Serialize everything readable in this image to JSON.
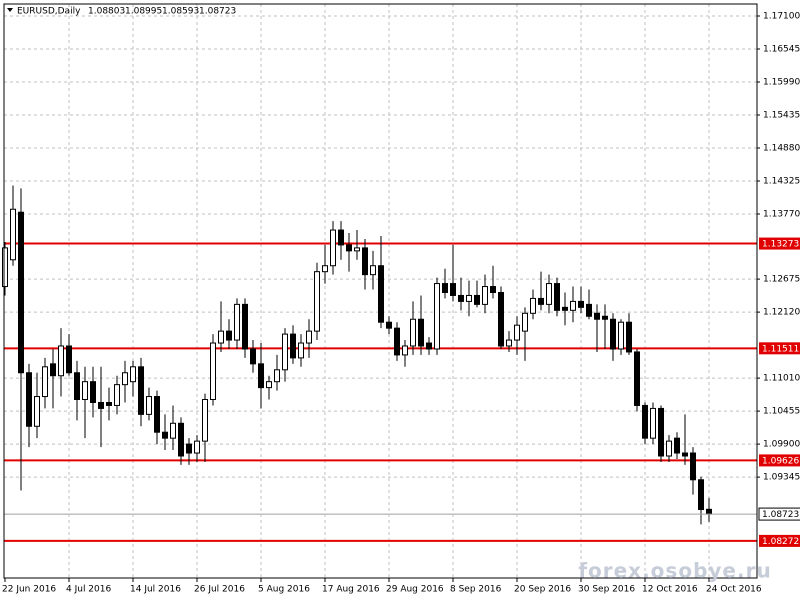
{
  "chart_data": {
    "type": "candlestick",
    "title": "EURUSD,Daily",
    "categories": [
      "22 Jun 2016",
      null,
      null,
      null,
      null,
      null,
      null,
      null,
      "4 Jul 2016",
      null,
      null,
      null,
      null,
      null,
      null,
      null,
      "14 Jul 2016",
      null,
      null,
      null,
      null,
      null,
      null,
      null,
      "26 Jul 2016",
      null,
      null,
      null,
      null,
      null,
      null,
      null,
      "5 Aug 2016",
      null,
      null,
      null,
      null,
      null,
      null,
      null,
      "17 Aug 2016",
      null,
      null,
      null,
      null,
      null,
      null,
      null,
      "29 Aug 2016",
      null,
      null,
      null,
      null,
      null,
      null,
      null,
      "8 Sep 2016",
      null,
      null,
      null,
      null,
      null,
      null,
      null,
      "20 Sep 2016",
      null,
      null,
      null,
      null,
      null,
      null,
      null,
      "30 Sep 2016",
      null,
      null,
      null,
      null,
      null,
      null,
      null,
      "12 Oct 2016",
      null,
      null,
      null,
      null,
      null,
      null,
      null,
      "24 Oct 2016"
    ],
    "open": [
      1.1255,
      1.13,
      1.138,
      1.111,
      1.102,
      1.107,
      1.1125,
      1.1105,
      1.1155,
      1.111,
      1.1065,
      1.1095,
      1.106,
      1.106,
      1.1055,
      1.109,
      1.1095,
      1.112,
      1.104,
      1.107,
      1.101,
      1.1,
      1.1025,
      1.099,
      1.0975,
      1.0995,
      1.1065,
      1.116,
      1.118,
      1.1165,
      1.1225,
      1.115,
      1.1125,
      1.1085,
      1.1095,
      1.1115,
      1.1175,
      1.1135,
      1.116,
      1.118,
      1.128,
      1.129,
      1.135,
      1.1325,
      1.1315,
      1.132,
      1.1275,
      1.129,
      1.1195,
      1.1185,
      1.114,
      1.1155,
      1.12,
      1.116,
      1.115,
      1.126,
      1.126,
      1.124,
      1.123,
      1.124,
      1.1225,
      1.1255,
      1.1245,
      1.1155,
      1.1165,
      1.118,
      1.121,
      1.1235,
      1.1225,
      1.126,
      1.122,
      1.1215,
      1.123,
      1.1225,
      1.121,
      1.1205,
      1.12,
      1.115,
      1.1195,
      1.1145,
      1.1055,
      1.1,
      1.105,
      1.097,
      1.1,
      1.0975,
      1.0975,
      1.093,
      1.08803
    ],
    "high": [
      1.133,
      1.1425,
      1.142,
      1.1125,
      1.111,
      1.1135,
      1.115,
      1.1185,
      1.1175,
      1.113,
      1.112,
      1.112,
      1.112,
      1.1085,
      1.1105,
      1.113,
      1.113,
      1.1135,
      1.1085,
      1.108,
      1.104,
      1.1055,
      1.1035,
      1.1,
      1.1005,
      1.1075,
      1.1175,
      1.123,
      1.12,
      1.1235,
      1.1235,
      1.1165,
      1.116,
      1.1105,
      1.114,
      1.1185,
      1.119,
      1.1175,
      1.12,
      1.1295,
      1.1325,
      1.1365,
      1.1365,
      1.1345,
      1.135,
      1.1335,
      1.1315,
      1.134,
      1.1205,
      1.1195,
      1.1165,
      1.123,
      1.124,
      1.117,
      1.127,
      1.1285,
      1.1325,
      1.127,
      1.1265,
      1.1265,
      1.1275,
      1.129,
      1.1255,
      1.118,
      1.1205,
      1.122,
      1.125,
      1.128,
      1.1275,
      1.127,
      1.1245,
      1.1255,
      1.1255,
      1.125,
      1.1225,
      1.1225,
      1.121,
      1.12,
      1.121,
      1.115,
      1.106,
      1.106,
      1.1055,
      1.1005,
      1.101,
      1.104,
      1.0985,
      1.0935,
      1.08995
    ],
    "low": [
      1.124,
      1.129,
      1.0912,
      1.0985,
      1.1,
      1.105,
      1.105,
      1.107,
      1.1105,
      1.103,
      1.1,
      1.1035,
      1.0985,
      1.103,
      1.104,
      1.106,
      1.107,
      1.102,
      1.103,
      1.099,
      1.098,
      1.098,
      1.0955,
      1.0955,
      1.096,
      1.096,
      1.1055,
      1.1145,
      1.115,
      1.115,
      1.1135,
      1.111,
      1.105,
      1.1065,
      1.108,
      1.1095,
      1.1125,
      1.112,
      1.1135,
      1.1165,
      1.126,
      1.1275,
      1.13,
      1.128,
      1.13,
      1.125,
      1.125,
      1.1185,
      1.1175,
      1.113,
      1.112,
      1.114,
      1.114,
      1.114,
      1.114,
      1.1235,
      1.123,
      1.1215,
      1.1205,
      1.122,
      1.121,
      1.1235,
      1.115,
      1.1145,
      1.114,
      1.113,
      1.12,
      1.1215,
      1.121,
      1.1205,
      1.119,
      1.1195,
      1.121,
      1.12,
      1.1145,
      1.115,
      1.113,
      1.114,
      1.114,
      1.1045,
      1.099,
      1.099,
      1.096,
      1.096,
      1.0965,
      1.0955,
      1.0905,
      1.0855,
      1.08593
    ],
    "close": [
      1.132,
      1.1385,
      1.111,
      1.102,
      1.107,
      1.112,
      1.1105,
      1.1155,
      1.111,
      1.1065,
      1.1095,
      1.106,
      1.105,
      1.1055,
      1.109,
      1.111,
      1.112,
      1.104,
      1.107,
      1.101,
      1.1,
      1.1025,
      1.097,
      1.0975,
      1.0995,
      1.1065,
      1.116,
      1.118,
      1.1165,
      1.1225,
      1.115,
      1.1125,
      1.1085,
      1.1095,
      1.1115,
      1.1175,
      1.1135,
      1.116,
      1.118,
      1.128,
      1.129,
      1.135,
      1.1325,
      1.1315,
      1.132,
      1.1275,
      1.129,
      1.1195,
      1.1185,
      1.114,
      1.1155,
      1.12,
      1.1155,
      1.115,
      1.126,
      1.1245,
      1.124,
      1.123,
      1.124,
      1.1225,
      1.1255,
      1.1245,
      1.1155,
      1.1165,
      1.119,
      1.121,
      1.1235,
      1.1225,
      1.126,
      1.1215,
      1.1215,
      1.123,
      1.122,
      1.1205,
      1.12,
      1.12,
      1.115,
      1.1195,
      1.1145,
      1.1055,
      1.1,
      1.105,
      1.097,
      1.0995,
      1.0975,
      1.097,
      1.093,
      1.088,
      1.08723
    ],
    "up_color": "#ffffff",
    "down_color": "#000000",
    "levels": [
      1.13273,
      1.11511,
      1.09626,
      1.08272
    ],
    "level_color": "#e00000",
    "ylim": [
      1.07648,
      1.17302
    ],
    "yticks": [
      {
        "value": 1.171,
        "label": "1.17100"
      },
      1.16545,
      {
        "value": 1.1599,
        "label": "1.15990"
      },
      1.15435,
      {
        "value": 1.1488,
        "label": "1.14880"
      },
      1.14325,
      {
        "value": 1.1377,
        "label": "1.13770"
      },
      1.12675,
      {
        "value": 1.1212,
        "label": "1.12120"
      },
      {
        "value": 1.1101,
        "label": "1.11010"
      },
      1.10455,
      {
        "value": 1.099,
        "label": "1.09900"
      },
      1.09345
    ],
    "grid": true,
    "watermark": "forex.osobye.ru"
  }
}
